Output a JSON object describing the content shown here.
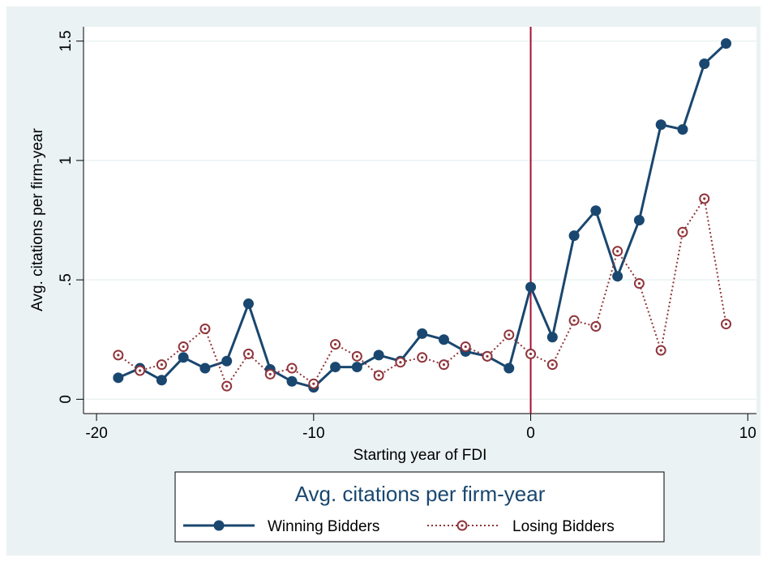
{
  "chart_data": {
    "type": "line",
    "title": "",
    "xlabel": "Starting year of FDI",
    "ylabel": "Avg. citations per firm-year",
    "xlim": [
      -20.6,
      10.4
    ],
    "ylim": [
      -0.06,
      1.56
    ],
    "x_ticks": [
      -20,
      -10,
      0,
      10
    ],
    "x_tick_labels": [
      "-20",
      "-10",
      "0",
      "10"
    ],
    "y_ticks": [
      0,
      0.5,
      1,
      1.5
    ],
    "y_tick_labels": [
      "0",
      ".5",
      "1",
      "1.5"
    ],
    "grid": true,
    "reference_line": {
      "x": 0,
      "color": "#a50f32"
    },
    "legend": {
      "title": "Avg. citations per firm-year",
      "position": "bottom"
    },
    "x": [
      -19,
      -18,
      -17,
      -16,
      -15,
      -14,
      -13,
      -12,
      -11,
      -10,
      -9,
      -8,
      -7,
      -6,
      -5,
      -4,
      -3,
      -2,
      -1,
      0,
      1,
      2,
      3,
      4,
      5,
      6,
      7,
      8,
      9
    ],
    "series": [
      {
        "name": "Winning Bidders",
        "color": "#1a476f",
        "style": "solid",
        "marker": "filled-circle",
        "values": [
          0.09,
          0.13,
          0.08,
          0.175,
          0.13,
          0.16,
          0.4,
          0.125,
          0.075,
          0.05,
          0.135,
          0.135,
          0.185,
          0.16,
          0.275,
          0.25,
          0.2,
          0.18,
          0.13,
          0.47,
          0.26,
          0.685,
          0.79,
          0.515,
          0.75,
          1.15,
          1.13,
          1.405,
          1.49
        ]
      },
      {
        "name": "Losing Bidders",
        "color": "#90353b",
        "style": "dotted",
        "marker": "hollow-circle",
        "values": [
          0.185,
          0.12,
          0.145,
          0.22,
          0.295,
          0.055,
          0.19,
          0.105,
          0.13,
          0.065,
          0.23,
          0.18,
          0.1,
          0.155,
          0.175,
          0.145,
          0.22,
          0.18,
          0.27,
          0.19,
          0.145,
          0.33,
          0.305,
          0.62,
          0.485,
          0.205,
          0.7,
          0.84,
          0.315
        ]
      }
    ]
  }
}
